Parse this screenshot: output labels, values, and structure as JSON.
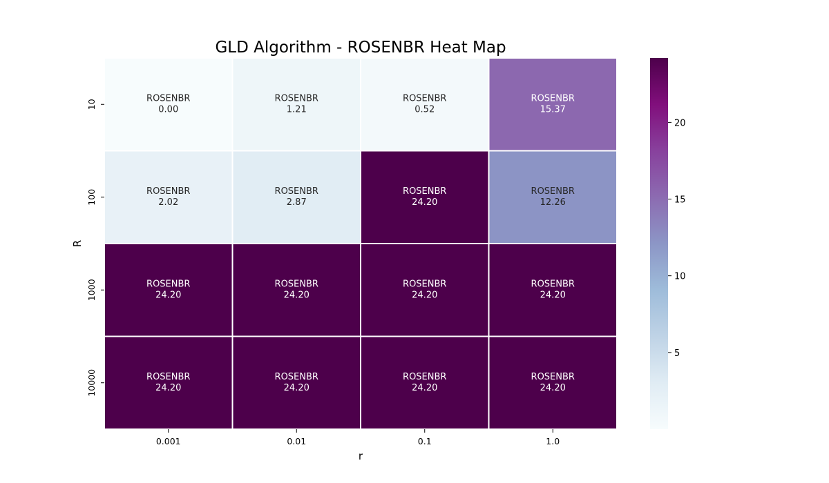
{
  "chart_data": {
    "type": "heatmap",
    "title": "GLD Algorithm - ROSENBR Heat Map",
    "xlabel": "r",
    "ylabel": "R",
    "x_categories": [
      "0.001",
      "0.01",
      "0.1",
      "1.0"
    ],
    "y_categories": [
      "10",
      "100",
      "1000",
      "10000"
    ],
    "cell_label": "ROSENBR",
    "values": [
      [
        0.0,
        1.21,
        0.52,
        15.37
      ],
      [
        2.02,
        2.87,
        24.2,
        12.26
      ],
      [
        24.2,
        24.2,
        24.2,
        24.2
      ],
      [
        24.2,
        24.2,
        24.2,
        24.2
      ]
    ],
    "colormap": "BuPu",
    "colorbar": {
      "range": [
        0,
        24.2
      ],
      "ticks": [
        5,
        10,
        15,
        20
      ]
    }
  }
}
